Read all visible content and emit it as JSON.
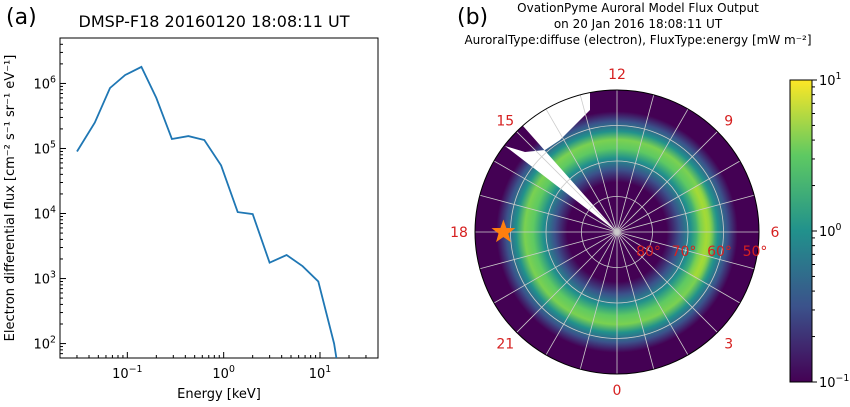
{
  "panel_a": {
    "label": "(a)",
    "chart_data": {
      "type": "line",
      "title": "DMSP-F18 20160120 18:08:11 UT",
      "xlabel": "Energy [keV]",
      "ylabel": "Electron differential flux [cm⁻² s⁻¹ sr⁻¹ eV⁻¹]",
      "xscale": "log",
      "yscale": "log",
      "xlim": [
        0.02,
        40
      ],
      "ylim": [
        60,
        5000000
      ],
      "x_ticks": [
        {
          "value": 0.1,
          "base": "10",
          "exp": "−1"
        },
        {
          "value": 1,
          "base": "10",
          "exp": "0"
        },
        {
          "value": 10,
          "base": "10",
          "exp": "1"
        }
      ],
      "y_ticks": [
        {
          "value": 100,
          "base": "10",
          "exp": "2"
        },
        {
          "value": 1000,
          "base": "10",
          "exp": "3"
        },
        {
          "value": 10000,
          "base": "10",
          "exp": "4"
        },
        {
          "value": 100000,
          "base": "10",
          "exp": "5"
        },
        {
          "value": 1000000,
          "base": "10",
          "exp": "6"
        }
      ],
      "line_color": "#1f77b4",
      "series": [
        {
          "x": [
            0.03,
            0.046,
            0.066,
            0.095,
            0.14,
            0.2,
            0.29,
            0.43,
            0.63,
            0.94,
            1.4,
            2.0,
            3.0,
            4.5,
            6.6,
            9.6,
            14.0,
            14.8
          ],
          "y": [
            90000,
            250000,
            850000,
            1350000,
            1800000,
            600000,
            140000,
            155000,
            135000,
            55000,
            10500,
            9800,
            1750,
            2300,
            1550,
            900,
            100,
            60
          ]
        }
      ]
    }
  },
  "panel_b": {
    "label": "(b)",
    "chart_data": {
      "type": "heatmap",
      "projection": "polar (magnetic local time / magnetic latitude)",
      "title_lines": [
        "OvationPyme Auroral Model Flux Output",
        "on 20 Jan 2016 18:08:11 UT",
        "AuroralType:diffuse (electron), FluxType:energy [mW m⁻²]"
      ],
      "mlt_labels": [
        "12",
        "15",
        "18",
        "21",
        "0",
        "3",
        "6",
        "9"
      ],
      "lat_labels": [
        "80°",
        "70°",
        "60°",
        "50°"
      ],
      "colorbar": {
        "scale": "log",
        "range": [
          0.1,
          10
        ],
        "ticks": [
          {
            "base": "10",
            "exp": "1"
          },
          {
            "base": "10",
            "exp": "0"
          },
          {
            "base": "10",
            "exp": "−1"
          }
        ],
        "colormap": "viridis"
      },
      "oval": {
        "peak_flux_mw_m2": 3,
        "center_colatitude_deg": 23,
        "width_deg": 6,
        "dawn_enhancement": true
      },
      "marker": {
        "symbol": "star",
        "mlt": 18,
        "mlat": 58,
        "color": "#ff7f0e"
      }
    }
  }
}
